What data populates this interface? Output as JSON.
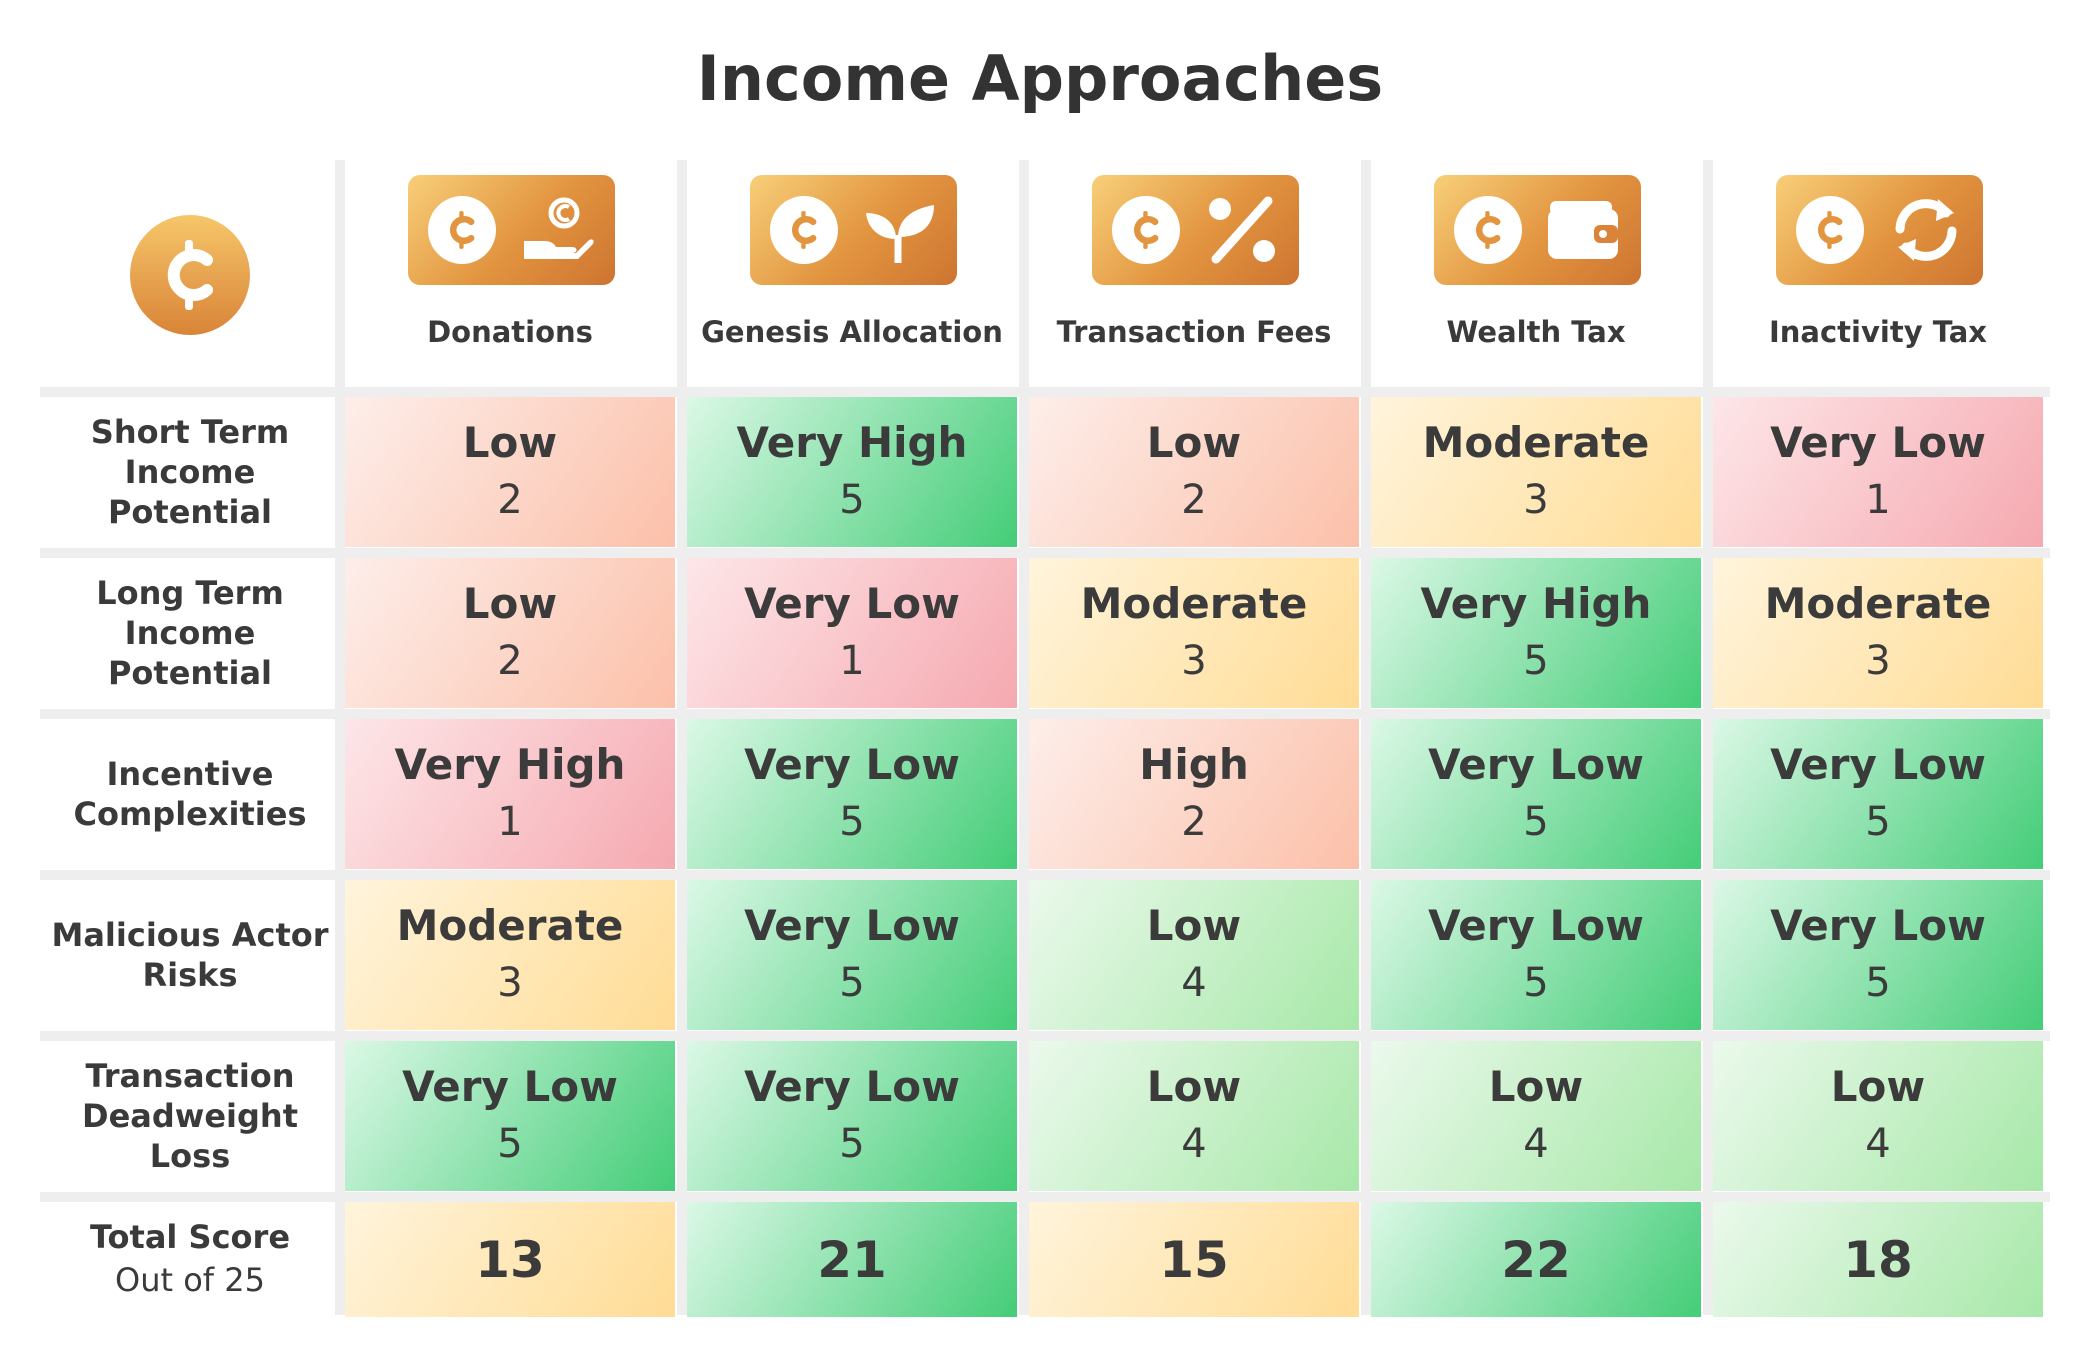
{
  "chart_data": {
    "type": "table",
    "title": "Income Approaches",
    "columns": [
      {
        "label": "Donations",
        "icon": "hand-coin-icon"
      },
      {
        "label": "Genesis Allocation",
        "icon": "sprout-icon"
      },
      {
        "label": "Transaction Fees",
        "icon": "percent-icon"
      },
      {
        "label": "Wealth Tax",
        "icon": "wallet-icon"
      },
      {
        "label": "Inactivity Tax",
        "icon": "refresh-icon"
      }
    ],
    "corner_icon": "coin-icon",
    "rows": [
      {
        "label_lines": [
          "Short Term",
          "Income",
          "Potential"
        ],
        "cells": [
          {
            "level": "Low",
            "score": "2"
          },
          {
            "level": "Very High",
            "score": "5"
          },
          {
            "level": "Low",
            "score": "2"
          },
          {
            "level": "Moderate",
            "score": "3"
          },
          {
            "level": "Very Low",
            "score": "1"
          }
        ]
      },
      {
        "label_lines": [
          "Long Term",
          "Income",
          "Potential"
        ],
        "cells": [
          {
            "level": "Low",
            "score": "2"
          },
          {
            "level": "Very Low",
            "score": "1"
          },
          {
            "level": "Moderate",
            "score": "3"
          },
          {
            "level": "Very High",
            "score": "5"
          },
          {
            "level": "Moderate",
            "score": "3"
          }
        ]
      },
      {
        "label_lines": [
          "Incentive",
          "Complexities"
        ],
        "cells": [
          {
            "level": "Very High",
            "score": "1"
          },
          {
            "level": "Very Low",
            "score": "5"
          },
          {
            "level": "High",
            "score": "2"
          },
          {
            "level": "Very Low",
            "score": "5"
          },
          {
            "level": "Very Low",
            "score": "5"
          }
        ]
      },
      {
        "label_lines": [
          "Malicious Actor",
          "Risks"
        ],
        "cells": [
          {
            "level": "Moderate",
            "score": "3"
          },
          {
            "level": "Very Low",
            "score": "5"
          },
          {
            "level": "Low",
            "score": "4"
          },
          {
            "level": "Very Low",
            "score": "5"
          },
          {
            "level": "Very Low",
            "score": "5"
          }
        ]
      },
      {
        "label_lines": [
          "Transaction",
          "Deadweight",
          "Loss"
        ],
        "cells": [
          {
            "level": "Very Low",
            "score": "5"
          },
          {
            "level": "Very Low",
            "score": "5"
          },
          {
            "level": "Low",
            "score": "4"
          },
          {
            "level": "Low",
            "score": "4"
          },
          {
            "level": "Low",
            "score": "4"
          }
        ]
      }
    ],
    "total": {
      "label": "Total Score",
      "sublabel": "Out of 25",
      "values": [
        "13",
        "21",
        "15",
        "22",
        "18"
      ]
    },
    "score_colors": {
      "1": [
        "#fde6e8",
        "#f5a9b0"
      ],
      "2": [
        "#fdeeea",
        "#fcc0a9"
      ],
      "3": [
        "#fff4dc",
        "#ffdc95"
      ],
      "4": [
        "#ebf9ec",
        "#a7e8a8"
      ],
      "5": [
        "#dbf8e6",
        "#44cd78"
      ]
    },
    "total_colors": {
      "13": [
        "#fff4dc",
        "#ffdc95"
      ],
      "15": [
        "#fff4dc",
        "#ffdc95"
      ],
      "18": [
        "#ebf9ec",
        "#a7e8a8"
      ],
      "21": [
        "#dbf8e6",
        "#44cd78"
      ],
      "22": [
        "#dbf8e6",
        "#44cd78"
      ]
    },
    "accent_color": "#e2943f"
  }
}
